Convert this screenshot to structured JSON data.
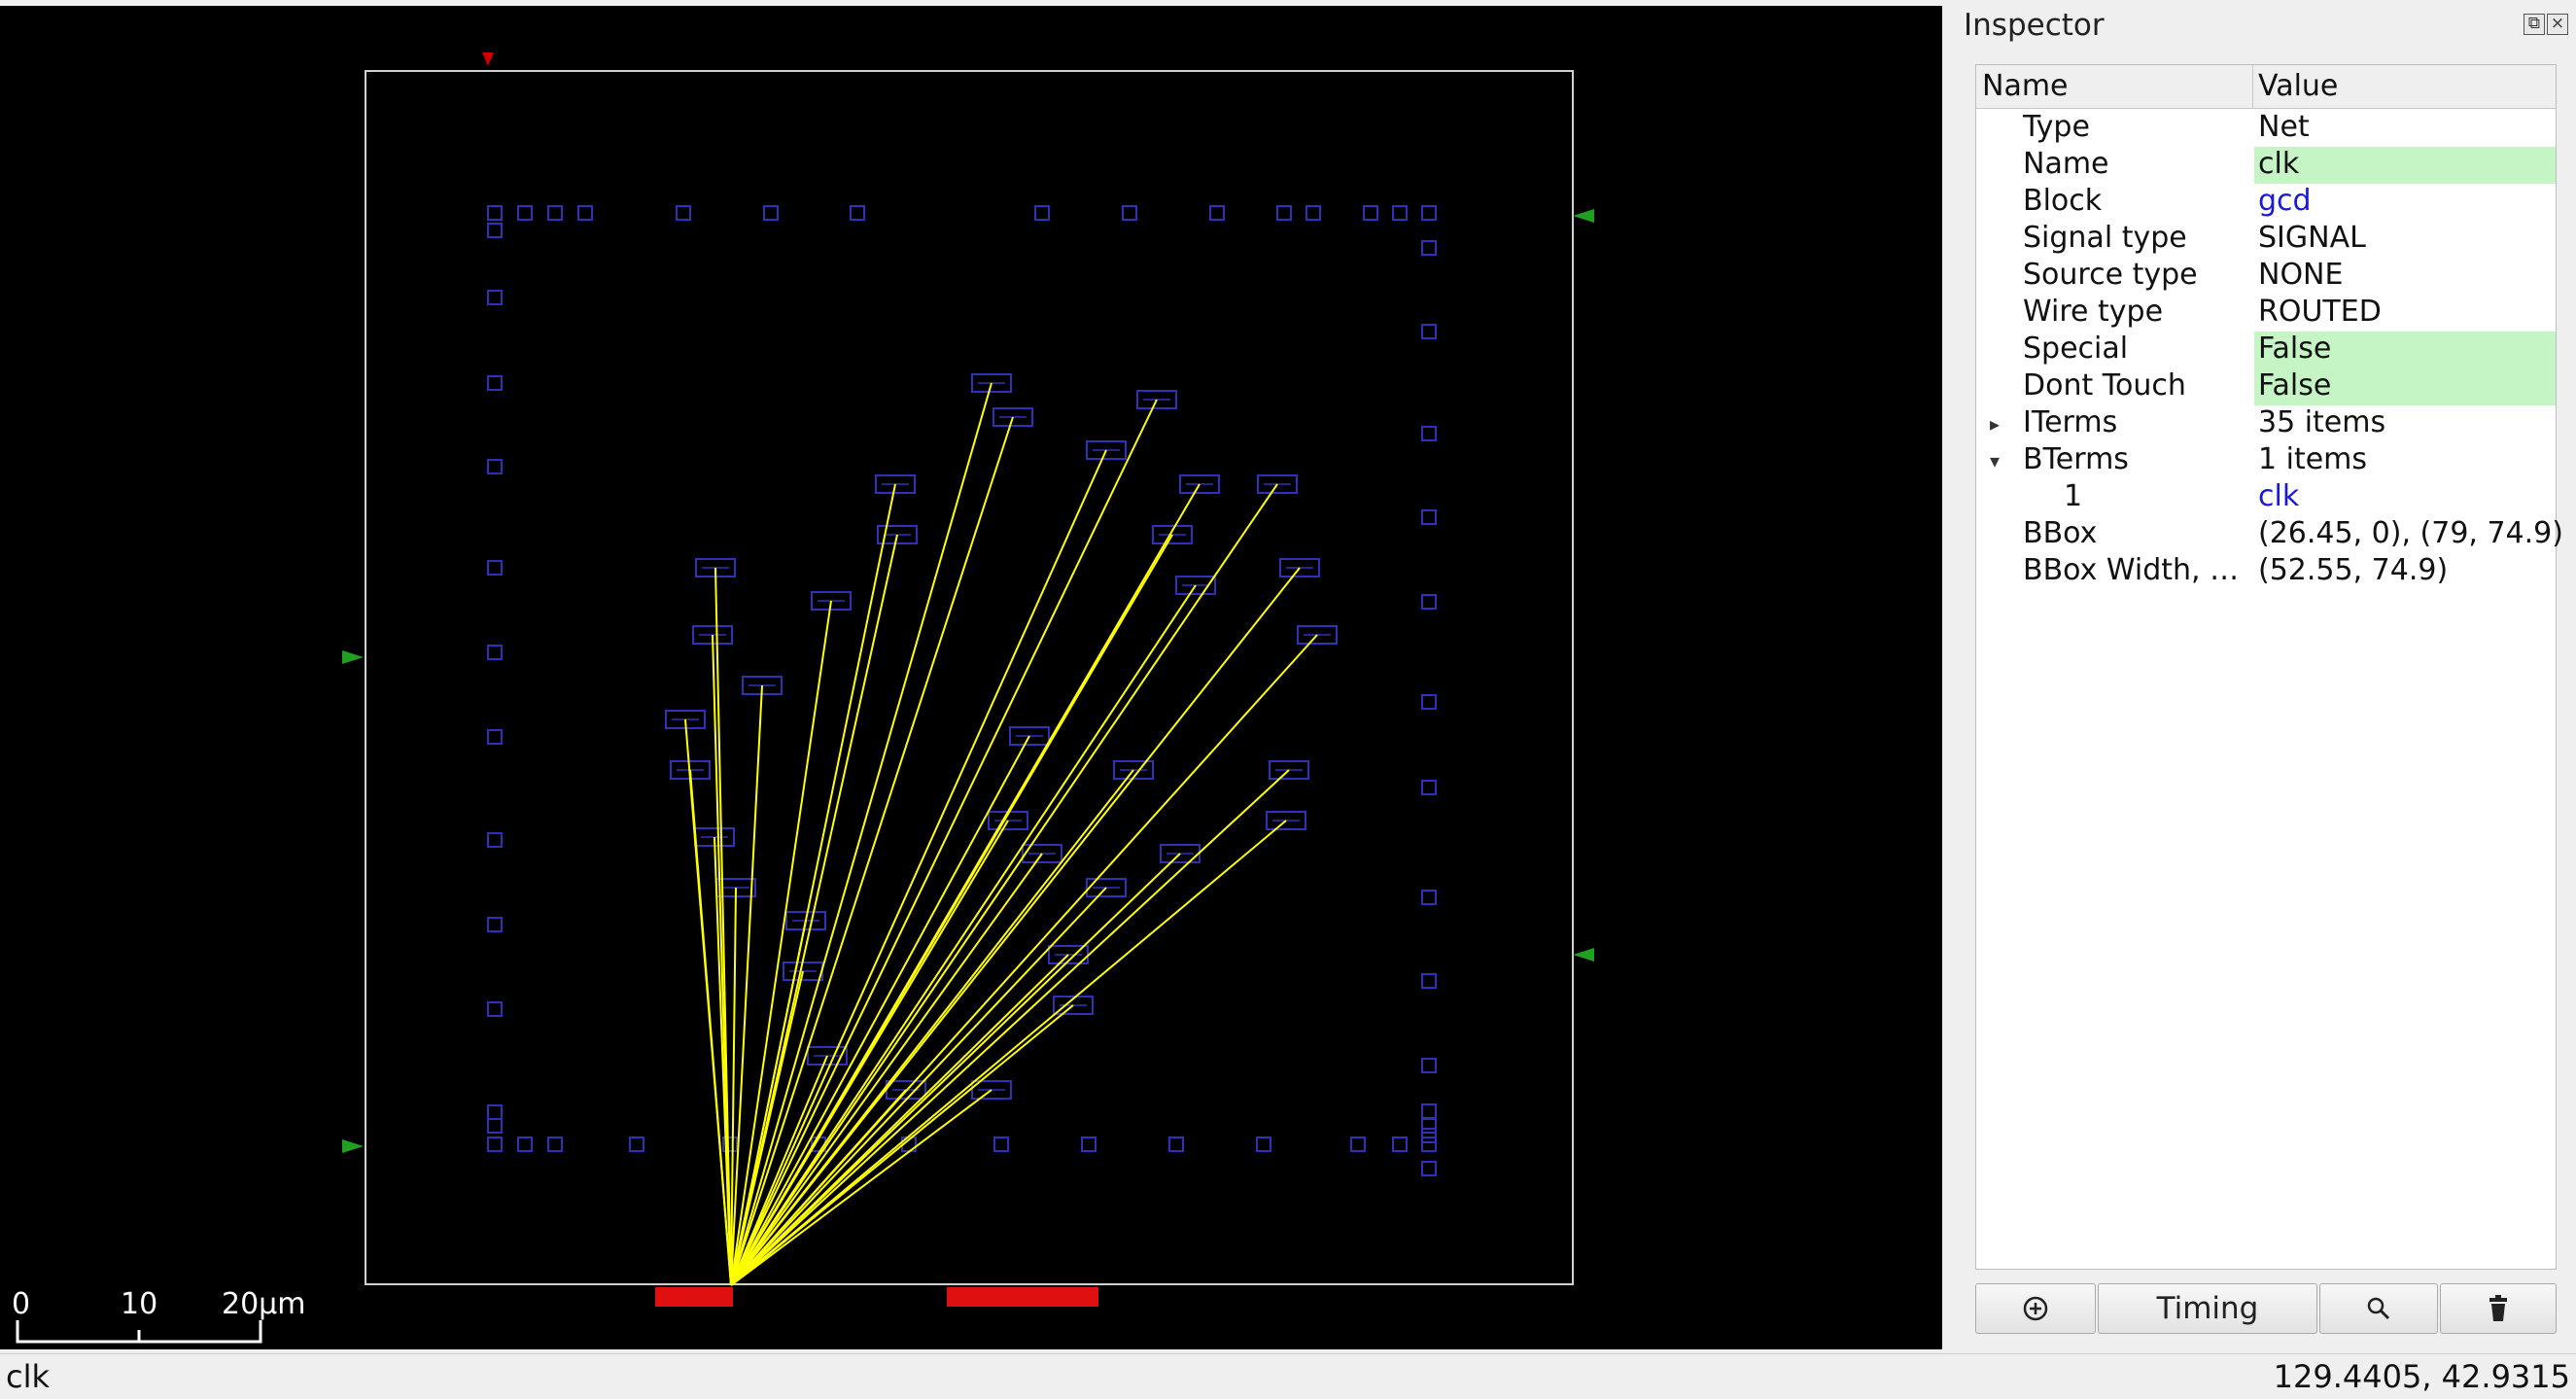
{
  "layout_view": {
    "net_label": "clk",
    "scale_labels": [
      "0",
      "10",
      "20µm"
    ]
  },
  "inspector": {
    "title": "Inspector",
    "columns": {
      "name": "Name",
      "value": "Value"
    },
    "rows": [
      {
        "name": "Type",
        "value": "Net",
        "style": "plain"
      },
      {
        "name": "Name",
        "value": "clk",
        "style": "hl"
      },
      {
        "name": "Block",
        "value": "gcd",
        "style": "link"
      },
      {
        "name": "Signal type",
        "value": "SIGNAL",
        "style": "plain"
      },
      {
        "name": "Source type",
        "value": "NONE",
        "style": "plain"
      },
      {
        "name": "Wire type",
        "value": "ROUTED",
        "style": "plain"
      },
      {
        "name": "Special",
        "value": "False",
        "style": "hl"
      },
      {
        "name": "Dont Touch",
        "value": "False",
        "style": "hl"
      },
      {
        "name": "ITerms",
        "value": "35 items",
        "style": "plain",
        "arrow": "collapsed"
      },
      {
        "name": "BTerms",
        "value": "1 items",
        "style": "plain",
        "arrow": "expanded"
      },
      {
        "name": "1",
        "value": "clk",
        "style": "link",
        "indent": true
      },
      {
        "name": "BBox",
        "value": "(26.45, 0), (79, 74.9)",
        "style": "plain"
      },
      {
        "name": "BBox Width, …",
        "value": "(52.55, 74.9)",
        "style": "plain"
      }
    ],
    "buttons": {
      "timing": "Timing"
    }
  },
  "status_bar": {
    "left": "clk",
    "coords": "129.4405, 42.9315"
  },
  "colors": {
    "canvas_bg": "#000000",
    "die_outline": "#d0d0d0",
    "instance": "#3030b8",
    "flight_line": "#ffff00",
    "pin_marker": "#20a020",
    "bterm": "#e01010"
  }
}
